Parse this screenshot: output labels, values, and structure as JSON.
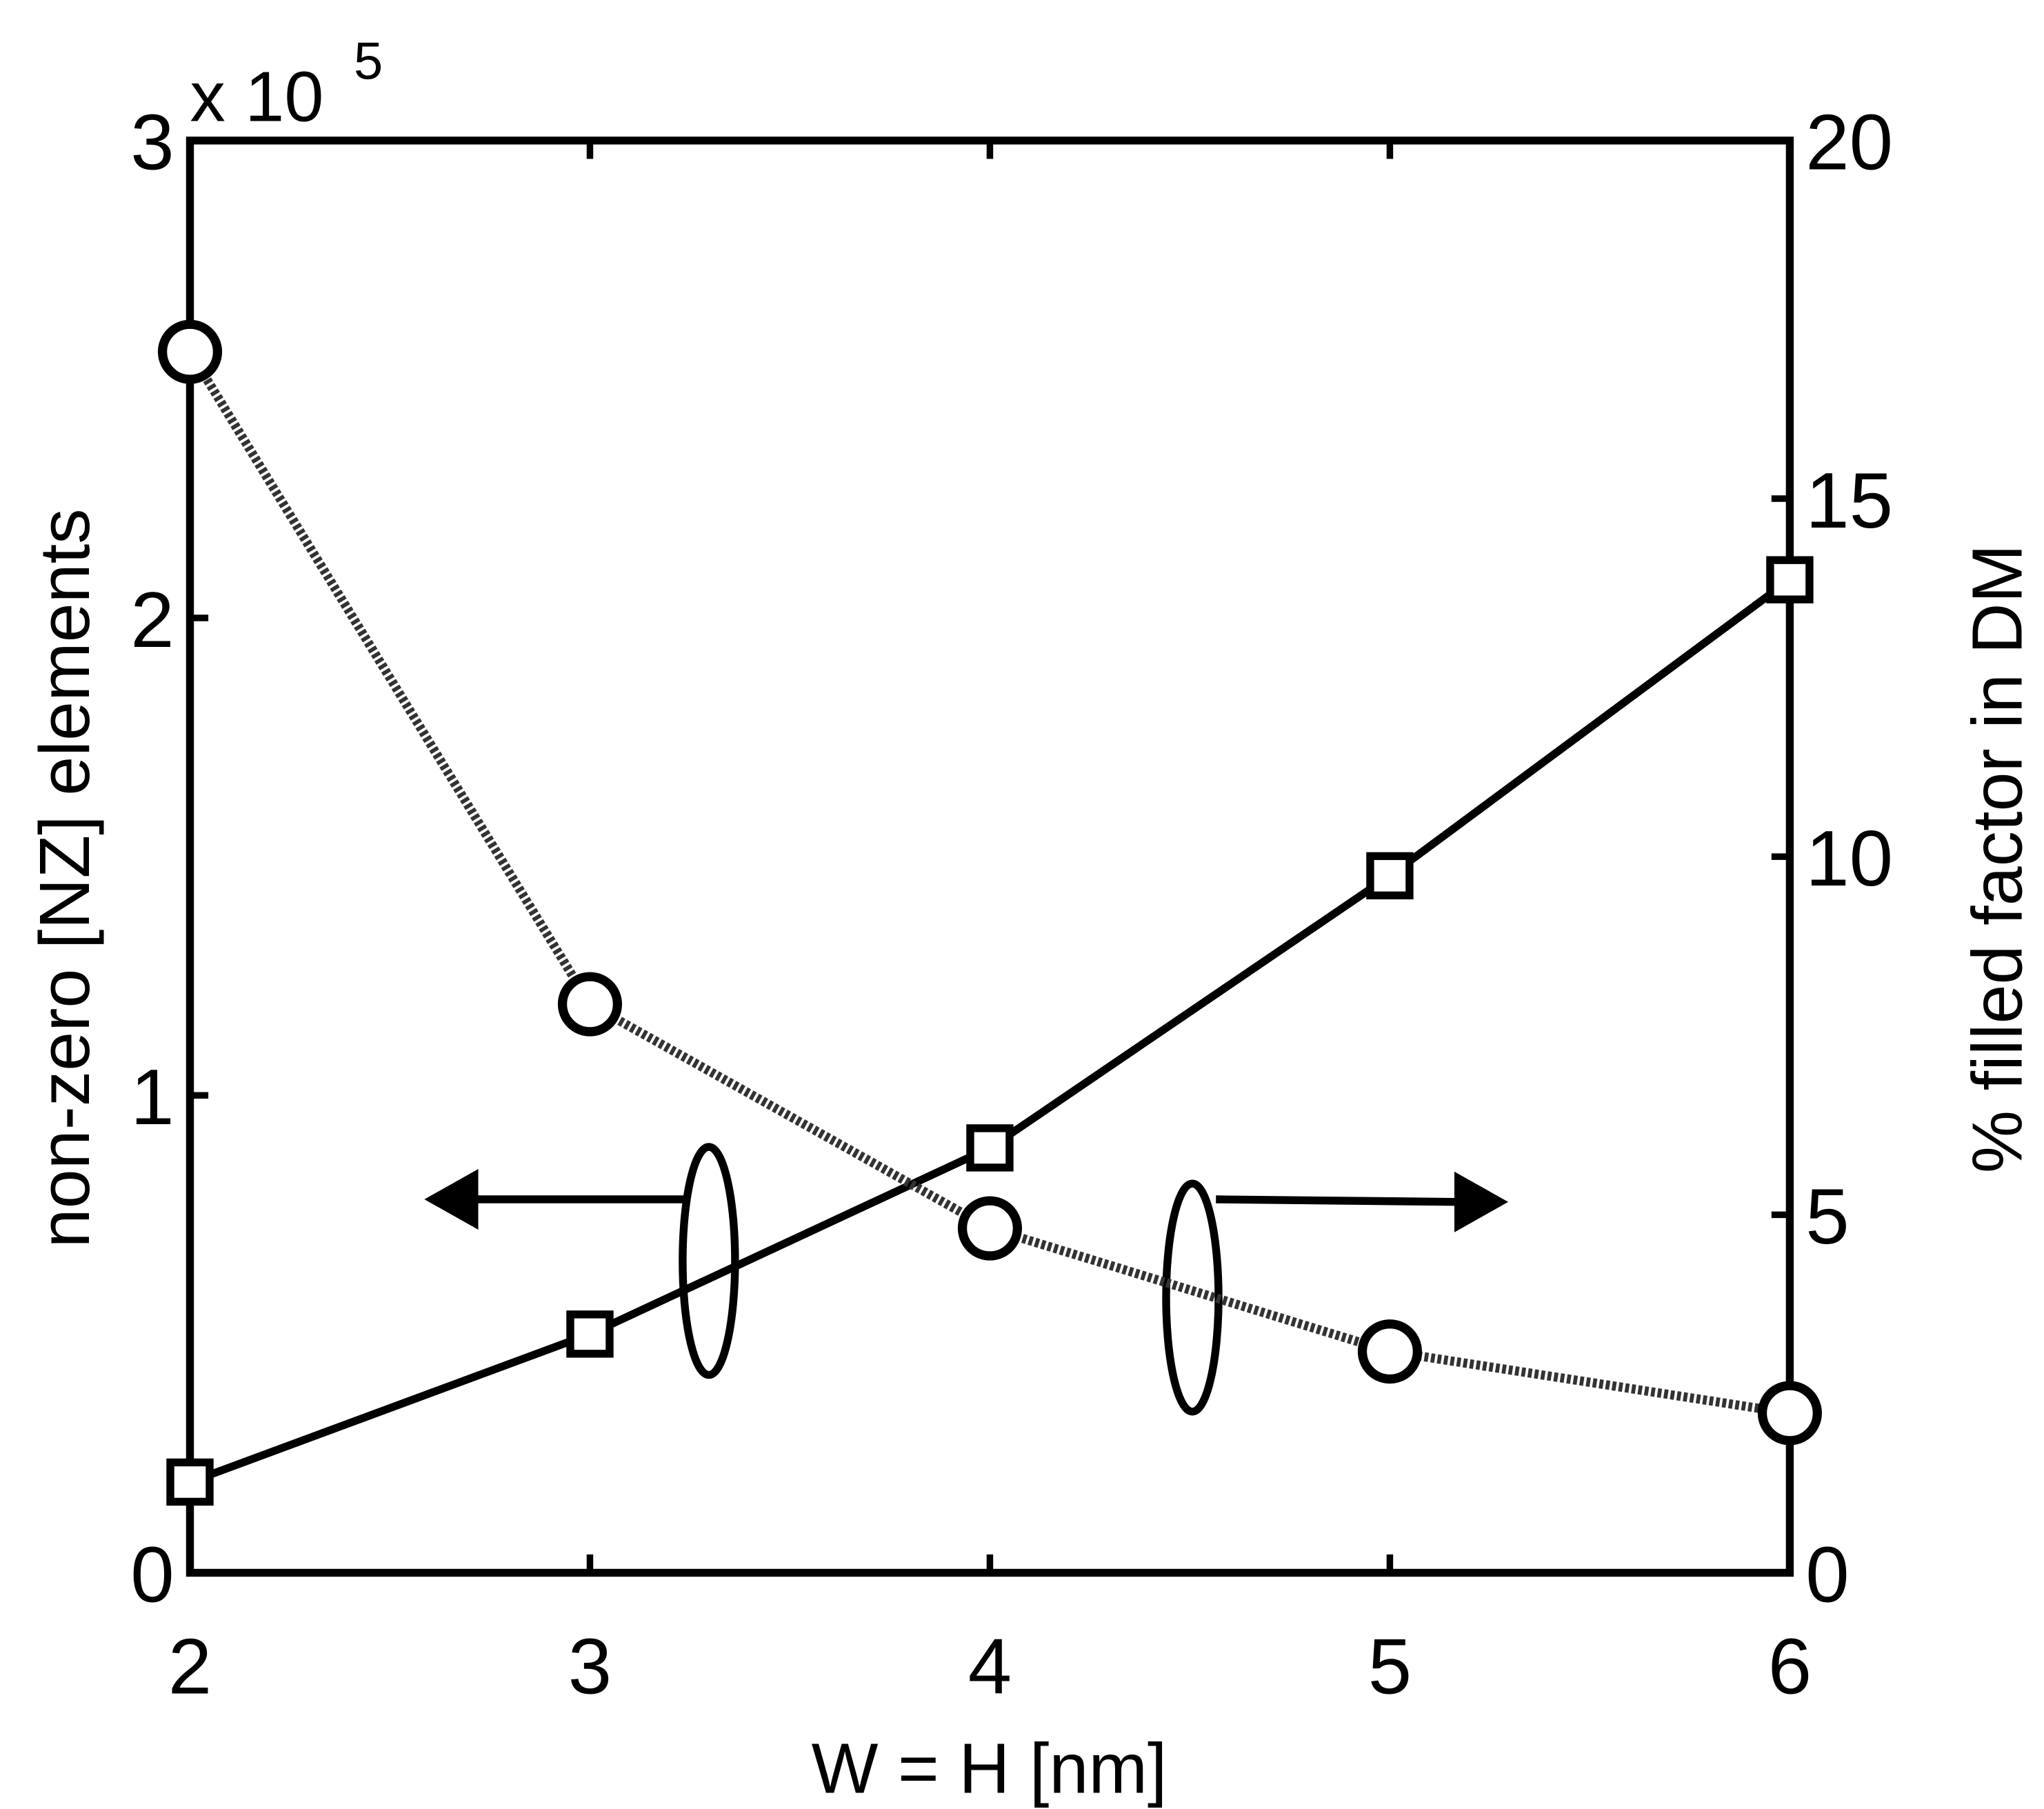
{
  "chart_data": {
    "type": "line",
    "xlabel": "W = H [nm]",
    "ylabel": "non-zero [NZ] elements",
    "y2label": "% filled factor in DM",
    "y_multiplier": {
      "base": "x 10",
      "exponent": "5"
    },
    "x": [
      2,
      3,
      4,
      5,
      6
    ],
    "xlim": [
      2,
      6
    ],
    "xticks": [
      2,
      3,
      4,
      5,
      6
    ],
    "ylim": [
      0,
      3
    ],
    "yticks": [
      0,
      1,
      2,
      3
    ],
    "y2lim": [
      0,
      20
    ],
    "y2ticks": [
      0,
      5,
      10,
      15,
      20
    ],
    "grid": false,
    "series": [
      {
        "name": "non-zero [NZ] elements",
        "color": "#000000",
        "axis": "y",
        "line_style": "solid",
        "marker": "square",
        "values": [
          0.19,
          0.5,
          0.89,
          1.46,
          2.08
        ]
      },
      {
        "name": "% filled factor in DM",
        "color": "#000000",
        "axis": "y2",
        "line_style": "dotted",
        "marker": "circle",
        "values": [
          17.05,
          7.94,
          4.81,
          3.09,
          2.23
        ]
      }
    ]
  }
}
